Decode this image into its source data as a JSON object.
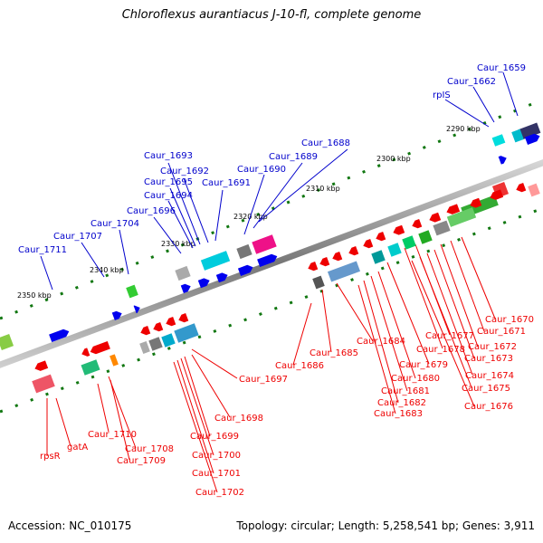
{
  "header": {
    "title": "Chloroflexus aurantiacus J-10-fl, complete genome"
  },
  "footer": {
    "accession": "Accession: NC_010175",
    "summary": "Topology: circular; Length: 5,258,541 bp; Genes: 3,911"
  },
  "colors": {
    "backbone": "#888888",
    "forward_label": "#0000cc",
    "reverse_label": "#ee0000",
    "tick": "#117711",
    "forward_gene": "#0000ee",
    "reverse_gene": "#ee0000"
  },
  "scale": {
    "unit": "kbp",
    "ticks": [
      "2290 kbp",
      "2300 kbp",
      "2310 kbp",
      "2320 kbp",
      "2330 kbp",
      "2340 kbp",
      "2350 kbp"
    ]
  },
  "forward_labels": [
    "Caur_1659",
    "Caur_1662",
    "rpIS",
    "Caur_1688",
    "Caur_1689",
    "Caur_1690",
    "Caur_1691",
    "Caur_1692",
    "Caur_1693",
    "Caur_1695",
    "Caur_1694",
    "Caur_1696",
    "Caur_1704",
    "Caur_1707",
    "Caur_1711"
  ],
  "reverse_labels": [
    "Caur_1670",
    "Caur_1671",
    "Caur_1672",
    "Caur_1673",
    "Caur_1674",
    "Caur_1675",
    "Caur_1676",
    "Caur_1677",
    "Caur_1678",
    "Caur_1679",
    "Caur_1680",
    "Caur_1681",
    "Caur_1682",
    "Caur_1683",
    "Caur_1684",
    "Caur_1685",
    "Caur_1686",
    "Caur_1697",
    "Caur_1698",
    "Caur_1699",
    "Caur_1700",
    "Caur_1701",
    "Caur_1702",
    "Caur_1710",
    "Caur_1708",
    "Caur_1709",
    "gatA",
    "rpsR"
  ]
}
